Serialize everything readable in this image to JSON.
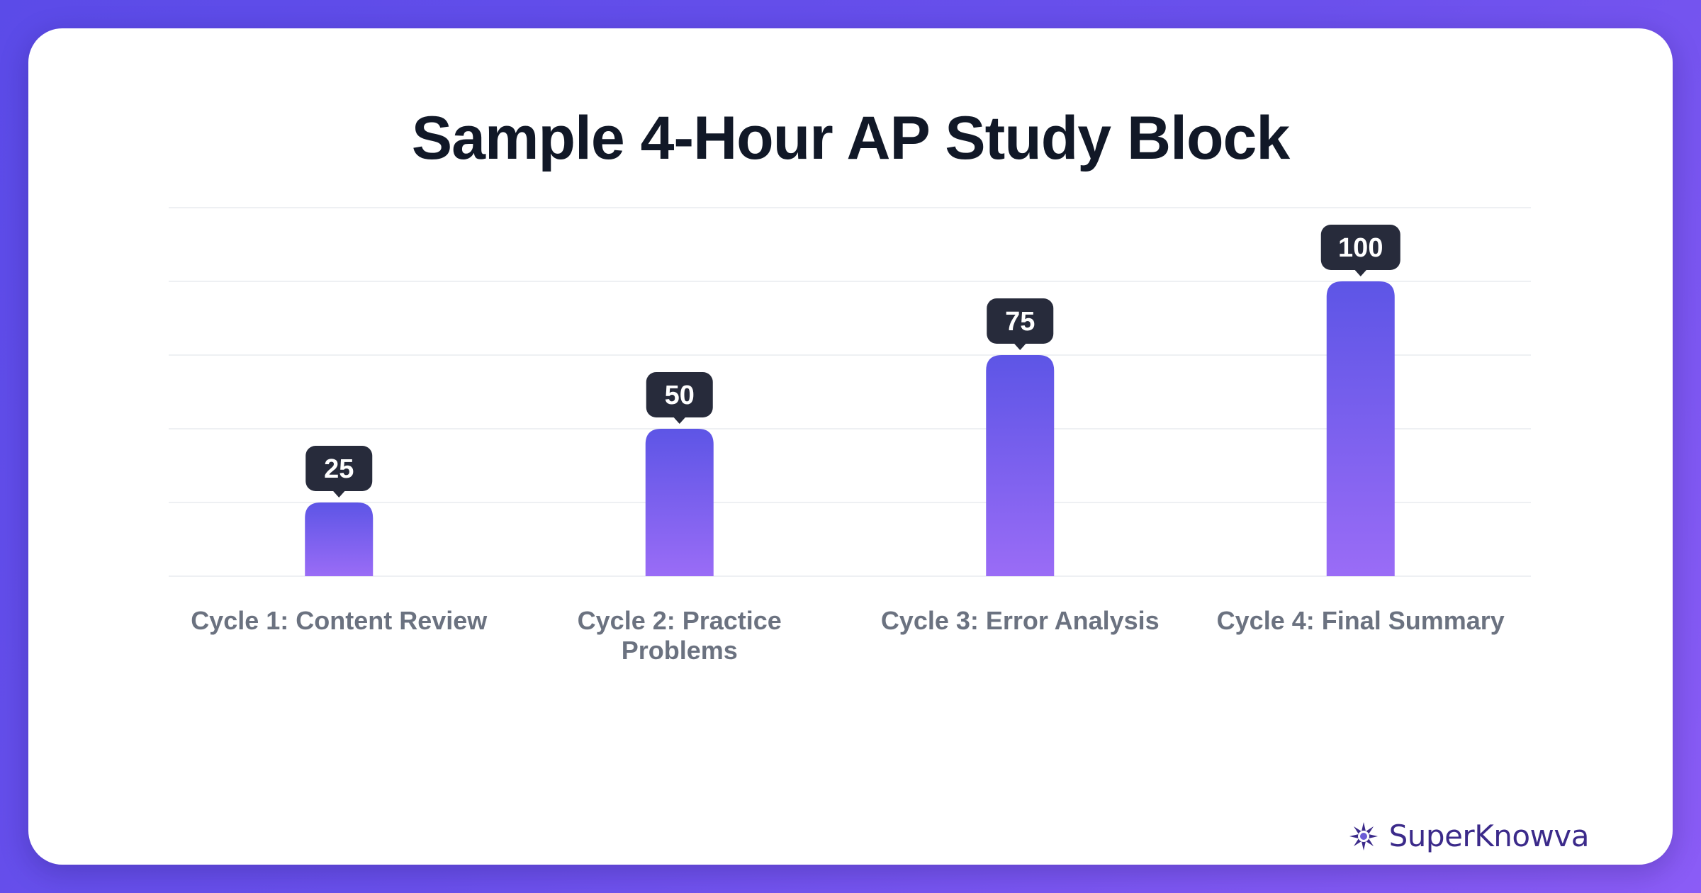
{
  "chart_data": {
    "type": "bar",
    "title": "Sample 4-Hour AP Study Block",
    "categories": [
      [
        "Cycle 1: Content Review"
      ],
      [
        "Cycle 2: Practice",
        "Problems"
      ],
      [
        "Cycle 3: Error Analysis"
      ],
      [
        "Cycle 4: Final Summary"
      ]
    ],
    "values": [
      25,
      50,
      75,
      100
    ],
    "data_labels": [
      "25",
      "50",
      "75",
      "100"
    ],
    "ylim": [
      0,
      125
    ],
    "grid": true,
    "colors": {
      "bar_top": "#5d55e6",
      "bar_bottom": "#9a6cf6",
      "label_bg": "#272b3b",
      "label_text": "#ffffff",
      "category_text": "#6b7280",
      "grid": "#eef0f3"
    }
  },
  "brand": {
    "name": "SuperKnowva",
    "icon": "starburst-logo-icon"
  },
  "colors": {
    "background_start": "#5b4be8",
    "background_end": "#8b5cf6",
    "card": "#ffffff",
    "title": "#111827",
    "brand": "#3b2a8a"
  }
}
